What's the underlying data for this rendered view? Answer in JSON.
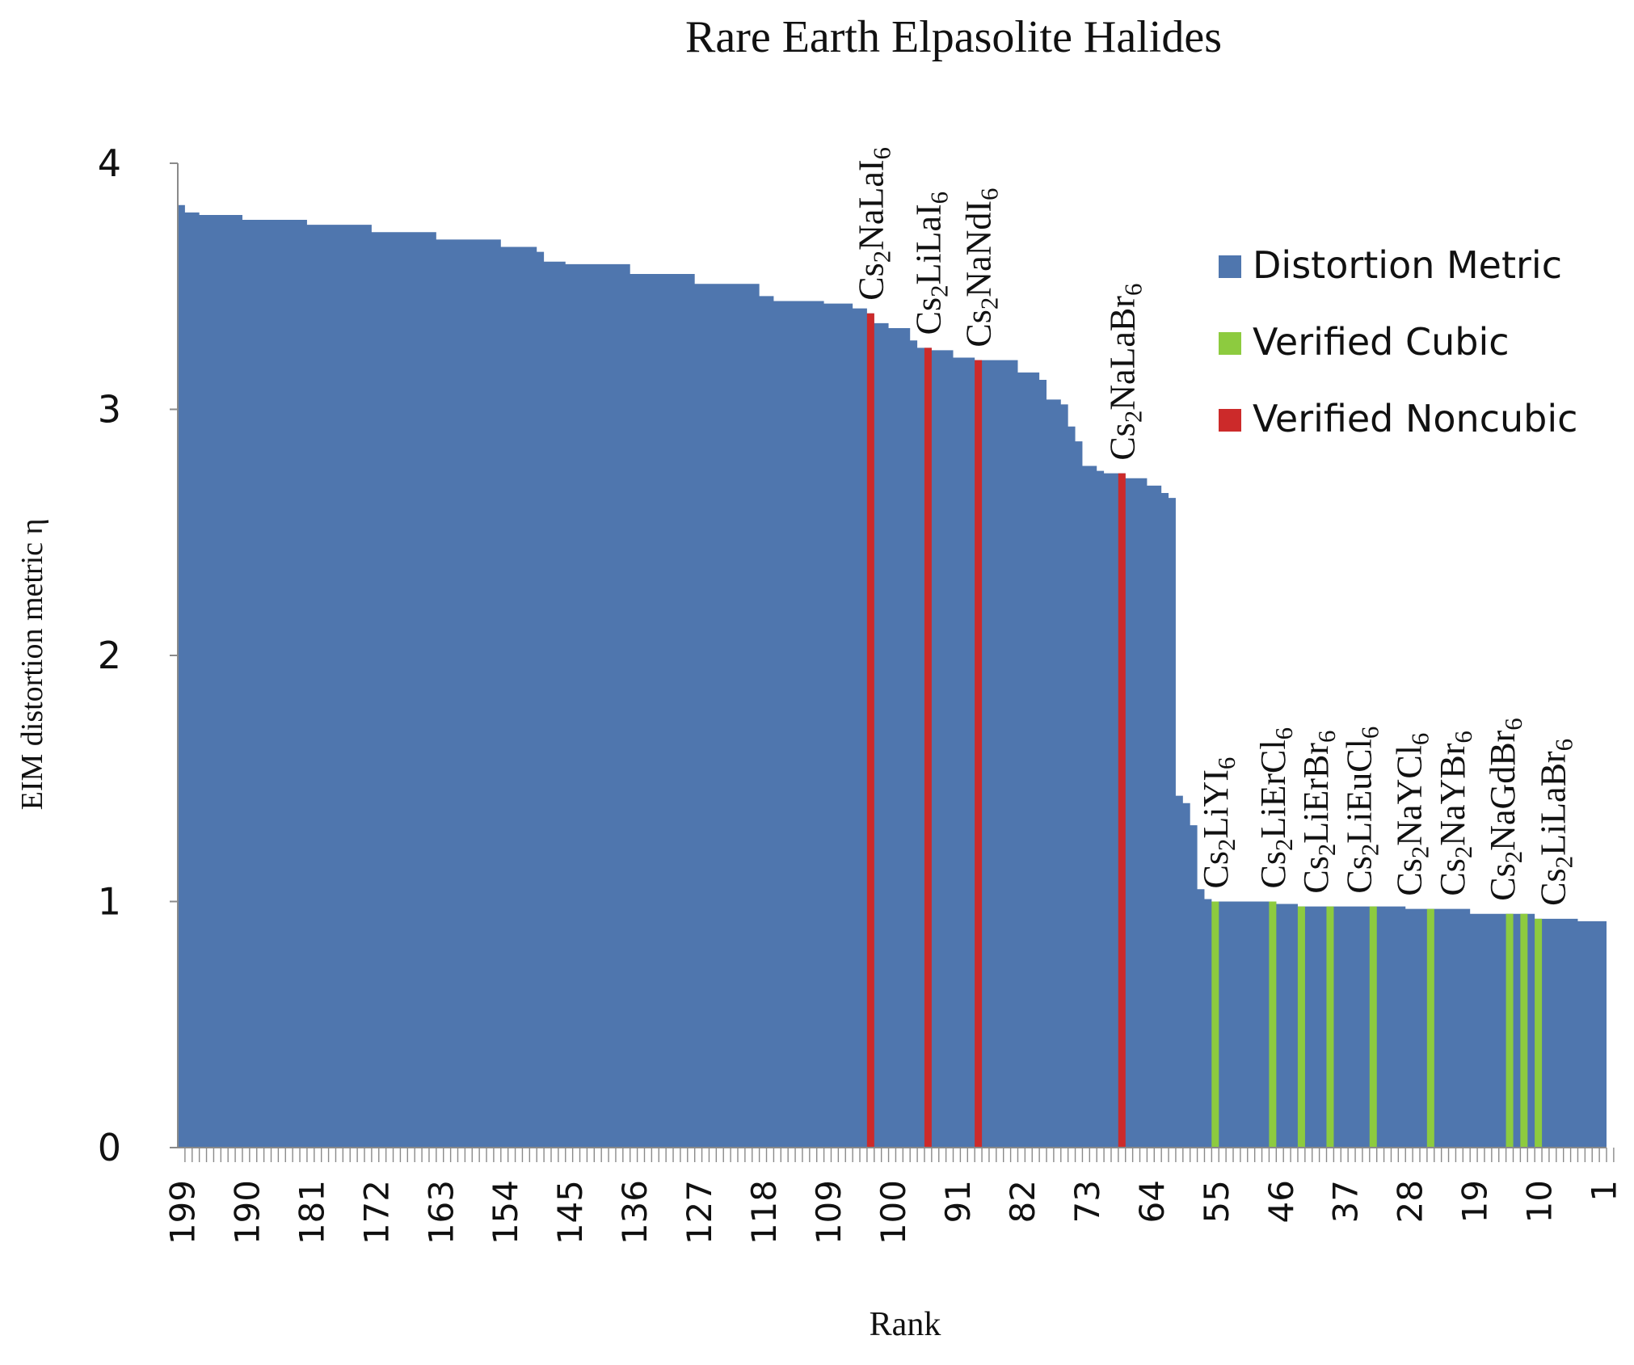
{
  "chart_data": {
    "type": "bar",
    "title": "Rare Earth Elpasolite Halides",
    "xlabel": "Rank",
    "ylabel": "EIM distortion metric η",
    "ylim": [
      0,
      4
    ],
    "yticks": [
      0,
      1,
      2,
      3,
      4
    ],
    "x_range": [
      199,
      1
    ],
    "xticks": [
      199,
      190,
      181,
      172,
      163,
      154,
      145,
      136,
      127,
      118,
      109,
      100,
      91,
      82,
      73,
      64,
      55,
      46,
      37,
      28,
      19,
      10,
      1
    ],
    "grid": false,
    "legend_position": "top-right",
    "series": [
      {
        "name": "Distortion Metric",
        "color": "#4F76AE",
        "points": [
          [
            199,
            3.83
          ],
          [
            198,
            3.8
          ],
          [
            196,
            3.79
          ],
          [
            190,
            3.77
          ],
          [
            181,
            3.75
          ],
          [
            172,
            3.72
          ],
          [
            163,
            3.69
          ],
          [
            154,
            3.66
          ],
          [
            149,
            3.64
          ],
          [
            148,
            3.6
          ],
          [
            145,
            3.59
          ],
          [
            136,
            3.55
          ],
          [
            127,
            3.51
          ],
          [
            118,
            3.46
          ],
          [
            116,
            3.44
          ],
          [
            109,
            3.43
          ],
          [
            105,
            3.41
          ],
          [
            103,
            3.39
          ],
          [
            102,
            3.35
          ],
          [
            100,
            3.33
          ],
          [
            97,
            3.28
          ],
          [
            96,
            3.25
          ],
          [
            94,
            3.24
          ],
          [
            91,
            3.21
          ],
          [
            88,
            3.2
          ],
          [
            82,
            3.15
          ],
          [
            79,
            3.12
          ],
          [
            78,
            3.04
          ],
          [
            76,
            3.02
          ],
          [
            75,
            2.93
          ],
          [
            74,
            2.87
          ],
          [
            73,
            2.77
          ],
          [
            71,
            2.75
          ],
          [
            70,
            2.74
          ],
          [
            67,
            2.72
          ],
          [
            64,
            2.69
          ],
          [
            62,
            2.66
          ],
          [
            61,
            2.64
          ],
          [
            60,
            1.43
          ],
          [
            59,
            1.4
          ],
          [
            58,
            1.31
          ],
          [
            57,
            1.05
          ],
          [
            56,
            1.01
          ],
          [
            55,
            1.0
          ],
          [
            46,
            0.99
          ],
          [
            43,
            0.98
          ],
          [
            37,
            0.98
          ],
          [
            28,
            0.97
          ],
          [
            19,
            0.95
          ],
          [
            10,
            0.93
          ],
          [
            4,
            0.92
          ],
          [
            1,
            0.92
          ]
        ]
      },
      {
        "name": "Verified Cubic",
        "color": "#8DCB3F",
        "markers": [
          {
            "rank": 55,
            "label": "Cs2LiYI6"
          },
          {
            "rank": 47,
            "label": "Cs2LiErCl6"
          },
          {
            "rank": 43,
            "label": "Cs2LiErBr6"
          },
          {
            "rank": 39,
            "label": "Cs2LiEuCl6"
          },
          {
            "rank": 33,
            "label": "Cs2NaYCl6"
          },
          {
            "rank": 25,
            "label": "Cs2NaYBr6"
          },
          {
            "rank": 14,
            "label": "Cs2NaGdBr6"
          },
          {
            "rank": 12,
            "label": "Cs2LiLaBr6"
          },
          {
            "rank": 10,
            "label": ""
          }
        ]
      },
      {
        "name": "Verified Noncubic",
        "color": "#CC2A2A",
        "markers": [
          {
            "rank": 103,
            "label": "Cs2NaLaI6"
          },
          {
            "rank": 95,
            "label": "Cs2LiLaI6"
          },
          {
            "rank": 88,
            "label": "Cs2NaNdI6"
          },
          {
            "rank": 68,
            "label": "Cs2NaLaBr6"
          }
        ]
      }
    ],
    "annotations": [
      {
        "rank": 103,
        "label": "Cs2NaLaI6",
        "color_group": "Verified Noncubic"
      },
      {
        "rank": 95,
        "label": "Cs2LiLaI6",
        "color_group": "Verified Noncubic"
      },
      {
        "rank": 88,
        "label": "Cs2NaNdI6",
        "color_group": "Verified Noncubic"
      },
      {
        "rank": 68,
        "label": "Cs2NaLaBr6",
        "color_group": "Verified Noncubic"
      },
      {
        "rank": 55,
        "label": "Cs2LiYI6",
        "color_group": "Verified Cubic"
      },
      {
        "rank": 47,
        "label": "Cs2LiErCl6",
        "color_group": "Verified Cubic"
      },
      {
        "rank": 41,
        "label": "Cs2LiErBr6",
        "color_group": "Verified Cubic"
      },
      {
        "rank": 35,
        "label": "Cs2LiEuCl6",
        "color_group": "Verified Cubic"
      },
      {
        "rank": 28,
        "label": "Cs2NaYCl6",
        "color_group": "Verified Cubic"
      },
      {
        "rank": 22,
        "label": "Cs2NaYBr6",
        "color_group": "Verified Cubic"
      },
      {
        "rank": 15,
        "label": "Cs2NaGdBr6",
        "color_group": "Verified Cubic"
      },
      {
        "rank": 8,
        "label": "Cs2LiLaBr6",
        "color_group": "Verified Cubic"
      }
    ]
  }
}
